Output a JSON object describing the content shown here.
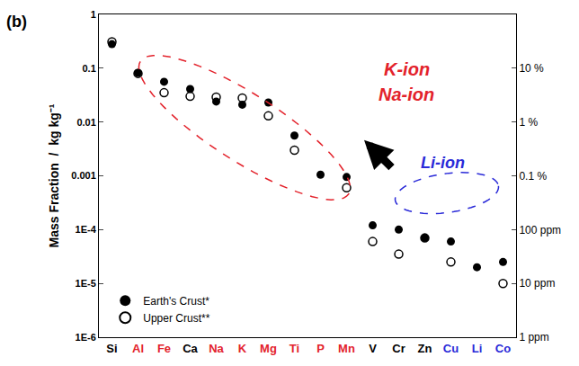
{
  "chart_data": {
    "type": "scatter",
    "categories": [
      "Si",
      "Al",
      "Fe",
      "Ca",
      "Na",
      "K",
      "Mg",
      "Ti",
      "P",
      "Mn",
      "V",
      "Cr",
      "Zn",
      "Cu",
      "Li",
      "Co"
    ],
    "colors": [
      "#000000",
      "#e3222b",
      "#e3222b",
      "#000000",
      "#e3222b",
      "#e3222b",
      "#e3222b",
      "#e3222b",
      "#e3222b",
      "#e3222b",
      "#000000",
      "#000000",
      "#000000",
      "#2a2ad8",
      "#2a2ad8",
      "#2a2ad8"
    ],
    "series": [
      {
        "name": "Earth's Crust*",
        "marker": "circle",
        "color": "#000000",
        "values": [
          0.28,
          0.082,
          0.056,
          0.041,
          0.024,
          0.021,
          0.023,
          0.0056,
          0.00105,
          0.00095,
          0.00012,
          0.0001,
          7e-05,
          6e-05,
          2e-05,
          2.5e-05
        ]
      },
      {
        "name": "Upper Crust**",
        "marker": "circle-open",
        "color": "#000000",
        "values": [
          0.31,
          0.08,
          0.035,
          0.03,
          0.029,
          0.028,
          0.013,
          0.003,
          null,
          0.0006,
          6e-05,
          3.5e-05,
          7e-05,
          2.5e-05,
          null,
          1e-05
        ]
      }
    ],
    "y_label": "Mass Fraction  /  kg kg⁻¹",
    "log": "y",
    "ylim": [
      1e-06,
      1
    ],
    "yticks": [
      1,
      0.1,
      0.01,
      0.001,
      {
        "value": 0.0001,
        "label": "1E-4"
      },
      {
        "value": 1e-05,
        "label": "1E-5"
      },
      {
        "value": 1e-06,
        "label": "1E-6"
      }
    ],
    "y2lim": [
      1e-06,
      1
    ],
    "y2ticks": [
      {
        "value": 0.1,
        "label": "10 %"
      },
      {
        "value": 0.01,
        "label": "1 %"
      },
      {
        "value": 0.001,
        "label": "0.1 %"
      },
      {
        "value": 0.0001,
        "label": "100 ppm"
      },
      {
        "value": 1e-05,
        "label": "10 ppm"
      },
      {
        "value": 1e-06,
        "label": "1 ppm"
      }
    ],
    "annotations": [
      {
        "text": "(b)"
      },
      {
        "text": "K-ion",
        "color": "#e3222b"
      },
      {
        "text": "Na-ion",
        "color": "#e3222b"
      },
      {
        "text": "Li-ion",
        "color": "#2a2ad8"
      }
    ],
    "grid": false,
    "legend": "lower left"
  }
}
